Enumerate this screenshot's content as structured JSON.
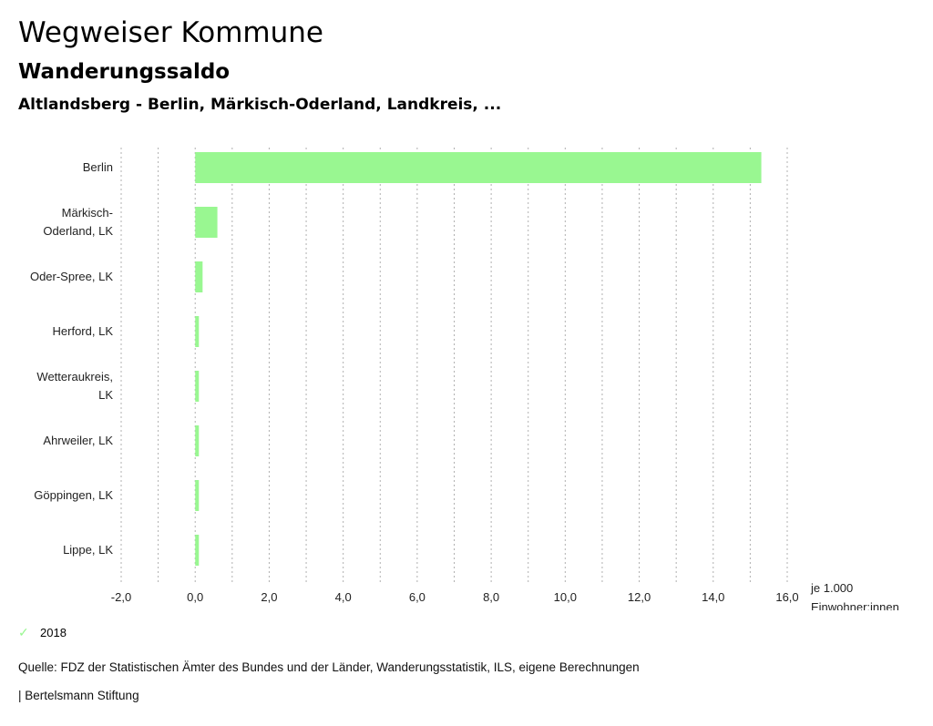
{
  "header": {
    "title": "Wegweiser Kommune",
    "subtitle": "Wanderungssaldo",
    "context": "Altlandsberg - Berlin, Märkisch-Oderland, Landkreis, ..."
  },
  "chart_data": {
    "type": "bar",
    "orientation": "horizontal",
    "title": "Wanderungssaldo",
    "categories": [
      [
        "Berlin"
      ],
      [
        "Märkisch-",
        "Oderland, LK"
      ],
      [
        "Oder-Spree, LK"
      ],
      [
        "Herford, LK"
      ],
      [
        "Wetteraukreis,",
        "LK"
      ],
      [
        "Ahrweiler, LK"
      ],
      [
        "Göppingen, LK"
      ],
      [
        "Lippe, LK"
      ]
    ],
    "series": [
      {
        "name": "2018",
        "color": "#99f791",
        "values": [
          15.3,
          0.6,
          0.2,
          0.1,
          0.1,
          0.1,
          0.1,
          0.1
        ]
      }
    ],
    "xlim": [
      -2,
      16
    ],
    "xticks": [
      -2,
      0,
      2,
      4,
      6,
      8,
      10,
      12,
      14,
      16
    ],
    "xtick_labels": [
      "-2,0",
      "0,0",
      "2,0",
      "4,0",
      "6,0",
      "8,0",
      "10,0",
      "12,0",
      "14,0",
      "16,0"
    ],
    "xlabel": [
      "je 1.000",
      "Einwohner:innen"
    ],
    "ylabel": "",
    "grid": "vertical dotted, every 1.0",
    "legend_position": "bottom-left"
  },
  "legend": {
    "icon": "check-icon",
    "label": "2018"
  },
  "footer": {
    "source": "Quelle: FDZ der Statistischen Ämter des Bundes und der Länder, Wanderungsstatistik, ILS, eigene Berechnungen",
    "brand": "| Bertelsmann Stiftung"
  }
}
